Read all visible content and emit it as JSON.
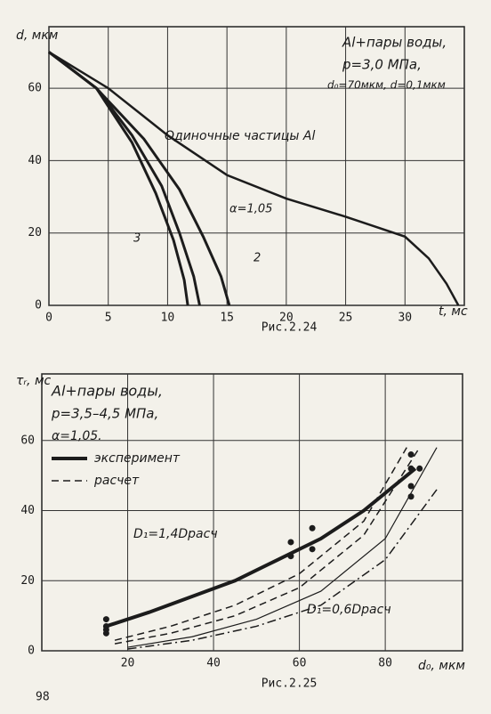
{
  "page_number": "98",
  "chart_data": [
    {
      "type": "line",
      "caption": "Рис.2.24",
      "xlabel": "t, мс",
      "ylabel": "d, мкм",
      "xlim": [
        0,
        35
      ],
      "ylim": [
        0,
        77
      ],
      "xticks": [
        0,
        5,
        10,
        15,
        20,
        25,
        30
      ],
      "yticks": [
        0,
        20,
        40,
        60
      ],
      "grid": true,
      "annotations": [
        "Al+пары воды,",
        "p=3,0 МПа,",
        "d₀=70мкм, d=0,1мкм",
        "Одиночные частицы Al",
        "α=1,05",
        "3",
        "2"
      ],
      "series": [
        {
          "color": "#1c1c1c",
          "linewidth": 2.5,
          "dash": "solid",
          "x": [
            0,
            5,
            10,
            15,
            20,
            25,
            30,
            32,
            33.5,
            34.5
          ],
          "values": [
            70,
            60,
            47,
            36,
            29.5,
            24.5,
            19,
            13,
            6,
            0
          ]
        },
        {
          "color": "#1c1c1c",
          "linewidth": 3,
          "dash": "solid",
          "x": [
            0,
            4,
            8,
            11,
            13,
            14.5,
            15.2
          ],
          "values": [
            70,
            60,
            46,
            32,
            19,
            8,
            0
          ]
        },
        {
          "color": "#1c1c1c",
          "linewidth": 3,
          "dash": "solid",
          "x": [
            0,
            4,
            7,
            9.5,
            11,
            12.2,
            12.7
          ],
          "values": [
            70,
            60,
            47,
            33,
            20,
            8,
            0
          ]
        },
        {
          "color": "#1c1c1c",
          "linewidth": 3,
          "dash": "solid",
          "x": [
            0,
            4,
            7,
            9,
            10.5,
            11.4,
            11.7
          ],
          "values": [
            70,
            60,
            45,
            31,
            18,
            7,
            0
          ]
        }
      ]
    },
    {
      "type": "line",
      "caption": "Рис.2.25",
      "xlabel": "d₀, мкм",
      "ylabel": "τᵣ, мс",
      "xlim": [
        0,
        98
      ],
      "ylim": [
        0,
        79
      ],
      "xticks": [
        20,
        40,
        60,
        80
      ],
      "yticks": [
        0,
        20,
        40,
        60
      ],
      "grid": true,
      "annotations": [
        "Al+пары воды,",
        "p=3,5–4,5 МПа,",
        "α=1,05.",
        "D₁=1,4Dрасч",
        "D₁=0,6Dрасч"
      ],
      "series": [
        {
          "name": "эксперимент",
          "color": "#1c1c1c",
          "linewidth": 4,
          "dash": "solid",
          "x": [
            15,
            25,
            35,
            45,
            55,
            65,
            75,
            87
          ],
          "values": [
            7,
            11,
            15.5,
            20,
            26,
            32,
            40,
            52
          ]
        },
        {
          "name": "расчет",
          "color": "#1c1c1c",
          "linewidth": 1.5,
          "dash": "dashed",
          "x": [
            17,
            30,
            45,
            60,
            75,
            85
          ],
          "values": [
            3,
            7,
            13,
            22,
            37,
            58
          ]
        },
        {
          "color": "#1c1c1c",
          "linewidth": 1.5,
          "dash": "dashed",
          "x": [
            17,
            30,
            45,
            60,
            75,
            88
          ],
          "values": [
            2,
            5,
            10,
            18,
            33,
            58
          ]
        },
        {
          "color": "#1c1c1c",
          "linewidth": 1.2,
          "dash": "solid",
          "x": [
            20,
            35,
            50,
            65,
            80,
            92
          ],
          "values": [
            1,
            4,
            9,
            17,
            32,
            58
          ]
        },
        {
          "color": "#1c1c1c",
          "linewidth": 1.5,
          "dash": "dashdot",
          "x": [
            20,
            35,
            50,
            65,
            80,
            92
          ],
          "values": [
            0.5,
            3,
            7,
            13,
            26,
            46
          ]
        },
        {
          "color": "#1c1c1c",
          "dash": "points",
          "x": [
            15,
            15,
            15,
            15,
            58,
            58,
            63,
            63,
            86,
            86,
            86,
            86,
            88
          ],
          "values": [
            9,
            7,
            6,
            5,
            31,
            27,
            35,
            29,
            56,
            52,
            47,
            44,
            52
          ]
        }
      ]
    }
  ]
}
